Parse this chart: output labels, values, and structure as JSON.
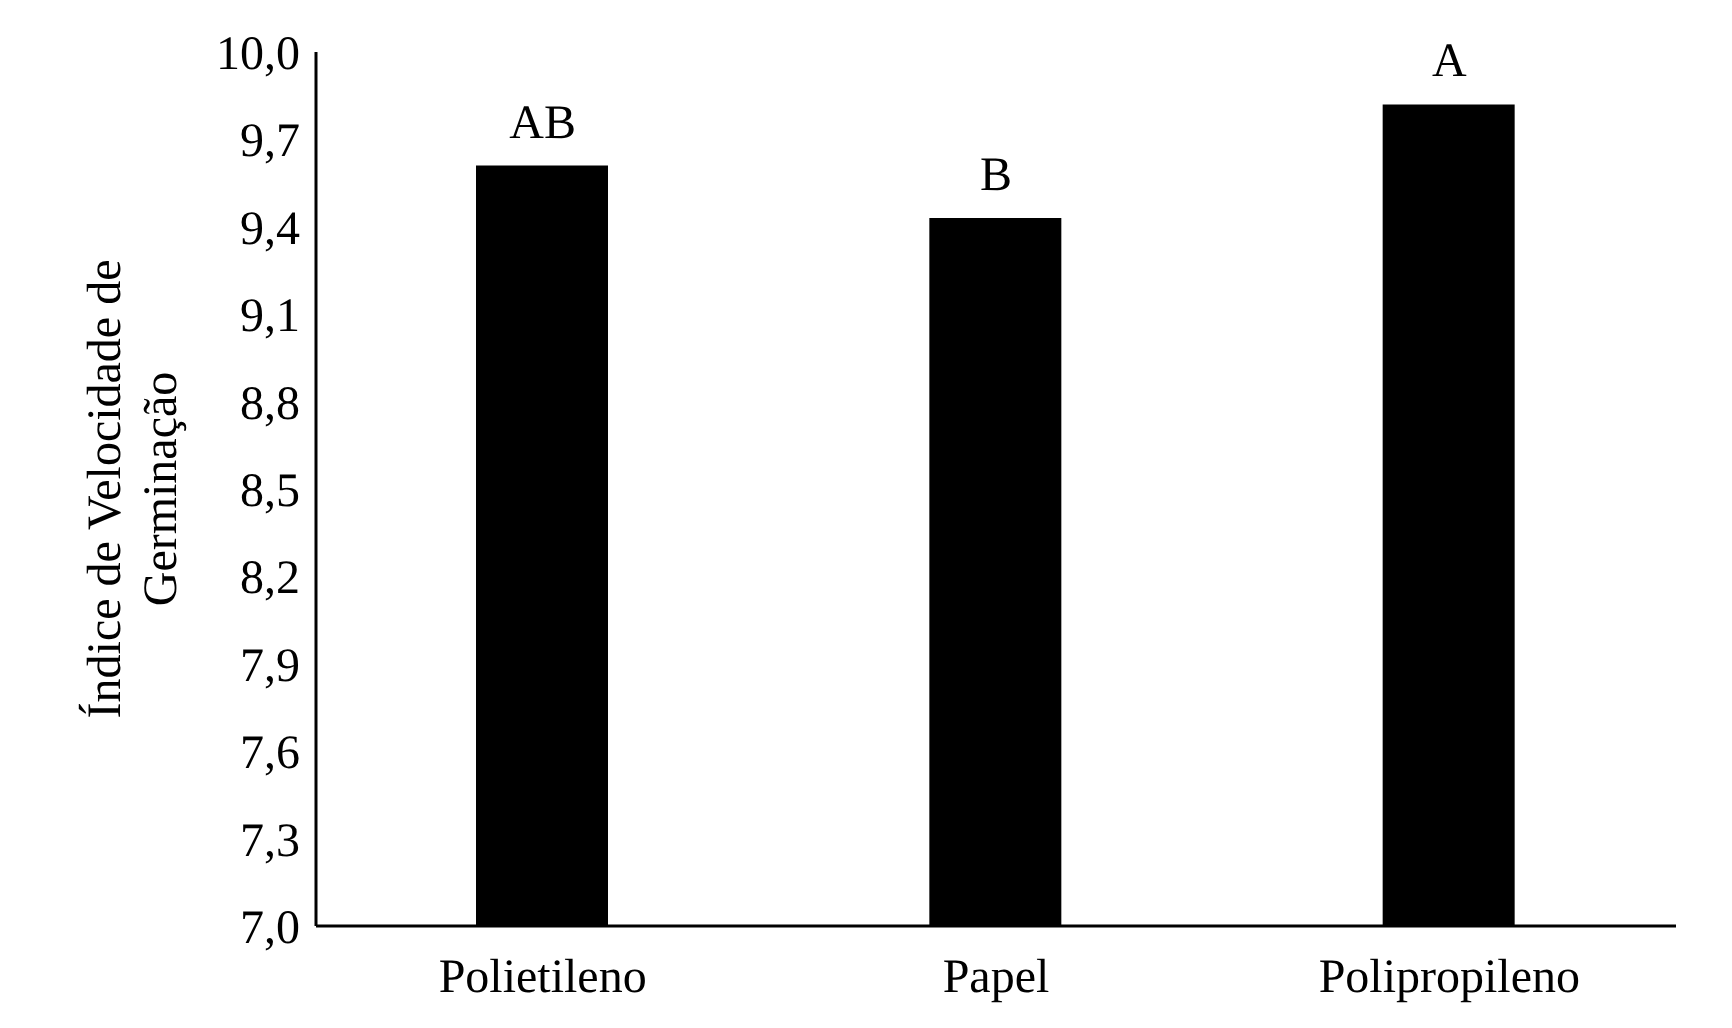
{
  "chart_data": {
    "type": "bar",
    "ylabel": "Índice de Velocidade de Germinação",
    "categories": [
      "Polietileno",
      "Papel",
      "Polipropileno"
    ],
    "values": [
      9.61,
      9.43,
      9.82
    ],
    "color": "#000000",
    "ylim": [
      7.0,
      10.0
    ],
    "yticks": [
      {
        "value": 7.0,
        "label": "7,0"
      },
      {
        "value": 7.3,
        "label": "7,3"
      },
      {
        "value": 7.6,
        "label": "7,6"
      },
      {
        "value": 7.9,
        "label": "7,9"
      },
      {
        "value": 8.2,
        "label": "8,2"
      },
      {
        "value": 8.5,
        "label": "8,5"
      },
      {
        "value": 8.8,
        "label": "8,8"
      },
      {
        "value": 9.1,
        "label": "9,1"
      },
      {
        "value": 9.4,
        "label": "9,4"
      },
      {
        "value": 9.7,
        "label": "9,7"
      },
      {
        "value": 10.0,
        "label": "10,0"
      }
    ],
    "annotations": [
      {
        "text": "AB",
        "x": "Polietileno",
        "y": 9.61
      },
      {
        "text": "B",
        "x": "Papel",
        "y": 9.43
      },
      {
        "text": "A",
        "x": "Polipropileno",
        "y": 9.82
      }
    ],
    "grid": false,
    "legend": false
  }
}
